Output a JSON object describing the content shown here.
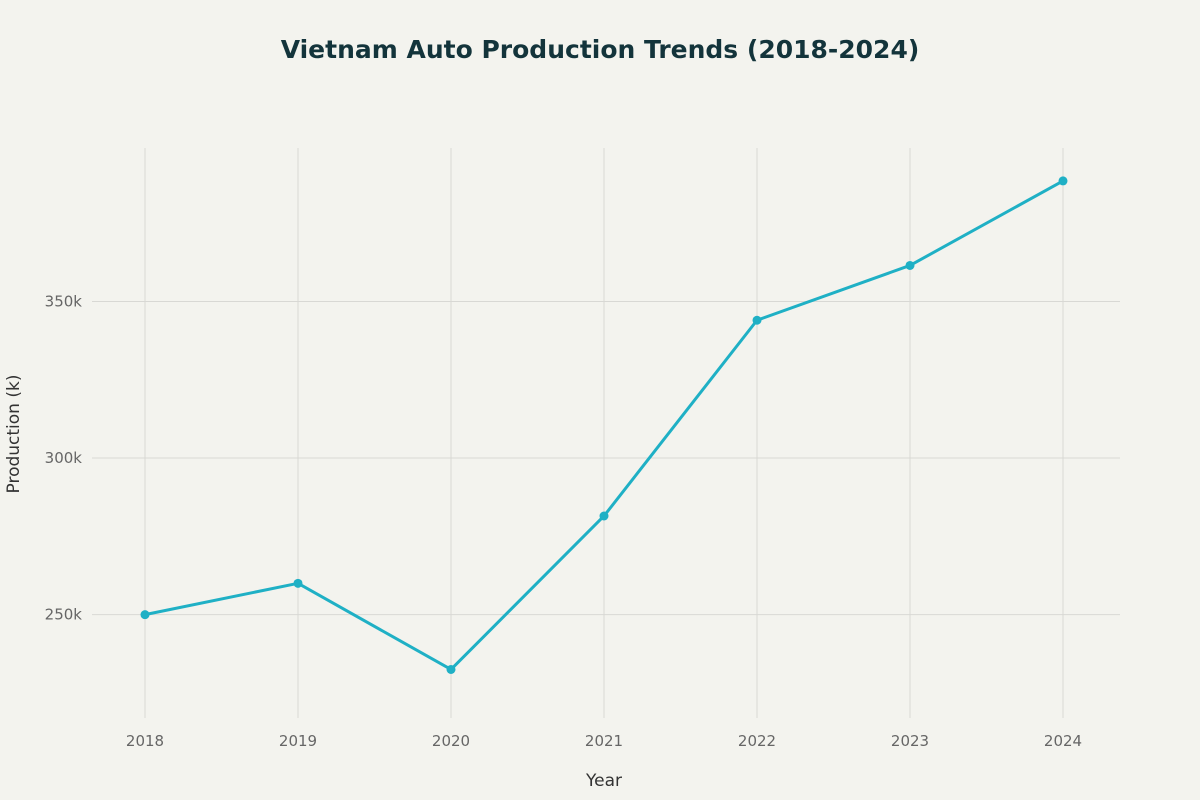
{
  "chart_data": {
    "type": "line",
    "title": "Vietnam Auto Production Trends (2018-2024)",
    "xlabel": "Year",
    "ylabel": "Production (k)",
    "categories": [
      "2018",
      "2019",
      "2020",
      "2021",
      "2022",
      "2023",
      "2024"
    ],
    "series": [
      {
        "name": "Production",
        "values": [
          250,
          260,
          232.5,
          281.5,
          344,
          361.5,
          388.5
        ]
      }
    ],
    "ylim": [
      217,
      399
    ],
    "yticks": [
      250,
      300,
      350
    ],
    "ytick_labels": [
      "250k",
      "300k",
      "350k"
    ],
    "grid": true,
    "legend": "none",
    "line_color": "#1fb0c5"
  }
}
